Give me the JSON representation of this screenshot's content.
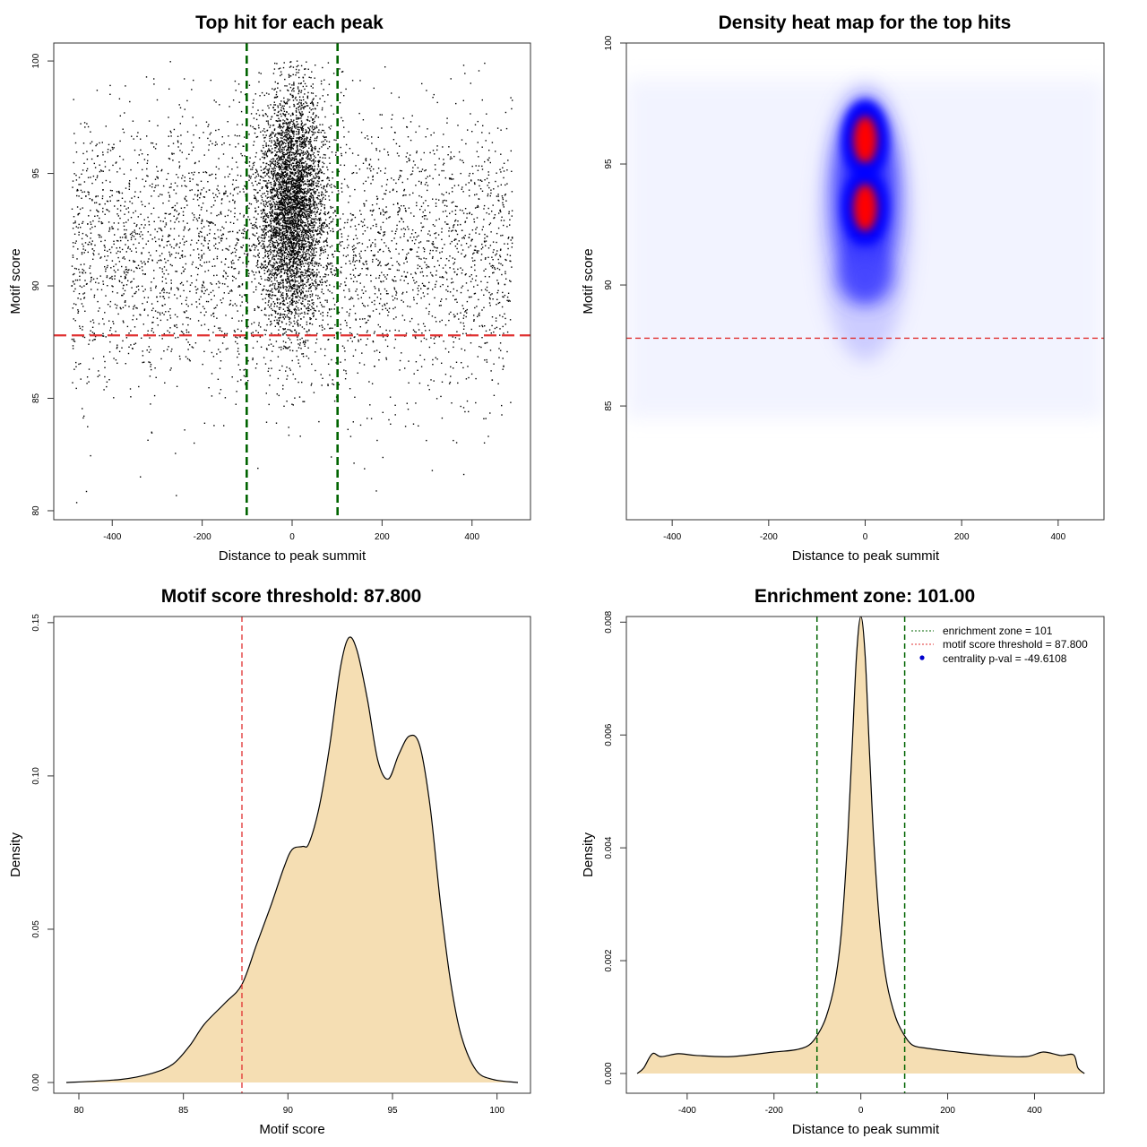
{
  "chart_data": [
    {
      "type": "scatter",
      "title": "Top hit for each peak",
      "xlabel": "Distance to peak summit",
      "ylabel": "Motif score",
      "xlim": [
        -530,
        530
      ],
      "ylim": [
        79.6,
        100.8
      ],
      "xticks": [
        -400,
        -200,
        0,
        200,
        400
      ],
      "yticks": [
        80,
        85,
        90,
        95,
        100
      ],
      "vlines": [
        -101,
        101
      ],
      "hline": 87.8,
      "point_color": "#000000",
      "vline_color": "#006400",
      "hline_color": "#e03030",
      "distribution": {
        "background": {
          "x_range": [
            -490,
            490
          ],
          "y_mean": 91.5,
          "y_sd": 3.2
        },
        "central": {
          "x_center": 0,
          "x_sd": 35,
          "y_mean": 93.5,
          "y_sd": 2.6
        }
      }
    },
    {
      "type": "heatmap",
      "title": "Density heat map for the top hits",
      "xlabel": "Distance to peak summit",
      "ylabel": "Motif score",
      "xlim": [
        -495,
        495
      ],
      "ylim": [
        80.3,
        100
      ],
      "xticks": [
        -400,
        -200,
        0,
        200,
        400
      ],
      "yticks": [
        85,
        90,
        95,
        100
      ],
      "vlines": [
        -101,
        101
      ],
      "hline": 87.8,
      "colors": [
        "#ffffff",
        "#0000ff",
        "#ff0000"
      ],
      "hotspots": [
        {
          "x": 0,
          "y": 96,
          "intensity": 1.0
        },
        {
          "x": 0,
          "y": 93.2,
          "intensity": 1.0
        },
        {
          "x": 0,
          "y": 90.3,
          "intensity": 0.5
        }
      ]
    },
    {
      "type": "area",
      "title": "Motif score threshold: 87.800",
      "xlabel": "Motif score",
      "ylabel": "Density",
      "xlim": [
        78.8,
        101.6
      ],
      "ylim": [
        -0.0035,
        0.152
      ],
      "xticks": [
        80,
        85,
        90,
        95,
        100
      ],
      "yticks": [
        0.0,
        0.05,
        0.1,
        0.15
      ],
      "ytick_labels": [
        "0.00",
        "0.05",
        "0.10",
        "0.15"
      ],
      "vline": 87.8,
      "fill_color": "#f5deb3",
      "vline_color": "#e03030",
      "x": [
        79.4,
        82,
        83.5,
        84.5,
        85.3,
        86,
        87,
        87.8,
        88.5,
        89.2,
        89.8,
        90.2,
        90.7,
        91.0,
        91.5,
        92.0,
        92.5,
        92.9,
        93.3,
        93.8,
        94.3,
        94.8,
        95.3,
        95.8,
        96.3,
        96.8,
        97.3,
        97.8,
        98.3,
        99.0,
        99.8,
        101.0
      ],
      "y": [
        0.0,
        0.001,
        0.003,
        0.006,
        0.012,
        0.019,
        0.026,
        0.032,
        0.045,
        0.058,
        0.07,
        0.076,
        0.077,
        0.078,
        0.09,
        0.11,
        0.135,
        0.145,
        0.141,
        0.125,
        0.105,
        0.099,
        0.107,
        0.113,
        0.11,
        0.09,
        0.058,
        0.032,
        0.015,
        0.004,
        0.001,
        0.0
      ]
    },
    {
      "type": "area",
      "title": "Enrichment zone: 101.00",
      "xlabel": "Distance to peak summit",
      "ylabel": "Density",
      "xlim": [
        -540,
        560
      ],
      "ylim": [
        -0.00035,
        0.0081
      ],
      "xticks": [
        -400,
        -200,
        0,
        200,
        400
      ],
      "yticks": [
        0.0,
        0.002,
        0.004,
        0.006,
        0.008
      ],
      "ytick_labels": [
        "0.000",
        "0.002",
        "0.004",
        "0.006",
        "0.008"
      ],
      "vlines": [
        -101,
        101
      ],
      "fill_color": "#f5deb3",
      "vline_color": "#006400",
      "x": [
        -515,
        -500,
        -480,
        -460,
        -420,
        -380,
        -300,
        -200,
        -150,
        -120,
        -100,
        -80,
        -60,
        -45,
        -30,
        -20,
        -10,
        0,
        10,
        20,
        30,
        45,
        60,
        80,
        100,
        120,
        150,
        200,
        300,
        380,
        420,
        460,
        490,
        500,
        515
      ],
      "y": [
        0.0,
        0.0001,
        0.00035,
        0.0003,
        0.00035,
        0.00032,
        0.0003,
        0.00038,
        0.00042,
        0.0005,
        0.00068,
        0.001,
        0.0016,
        0.0025,
        0.0042,
        0.0058,
        0.0074,
        0.0081,
        0.0074,
        0.0057,
        0.0041,
        0.0025,
        0.0016,
        0.001,
        0.00068,
        0.0005,
        0.00045,
        0.0004,
        0.00032,
        0.0003,
        0.00038,
        0.00032,
        0.00033,
        0.0001,
        0.0
      ],
      "legend": {
        "position": "top-right",
        "items": [
          {
            "label": "enrichment zone = 101",
            "style": "dotted-line",
            "color": "#006400"
          },
          {
            "label": "motif score threshold = 87.800",
            "style": "dotted-line",
            "color": "#e03030"
          },
          {
            "label": "centrality p-val = -49.6108",
            "style": "dot",
            "color": "#0000cc"
          }
        ]
      }
    }
  ]
}
